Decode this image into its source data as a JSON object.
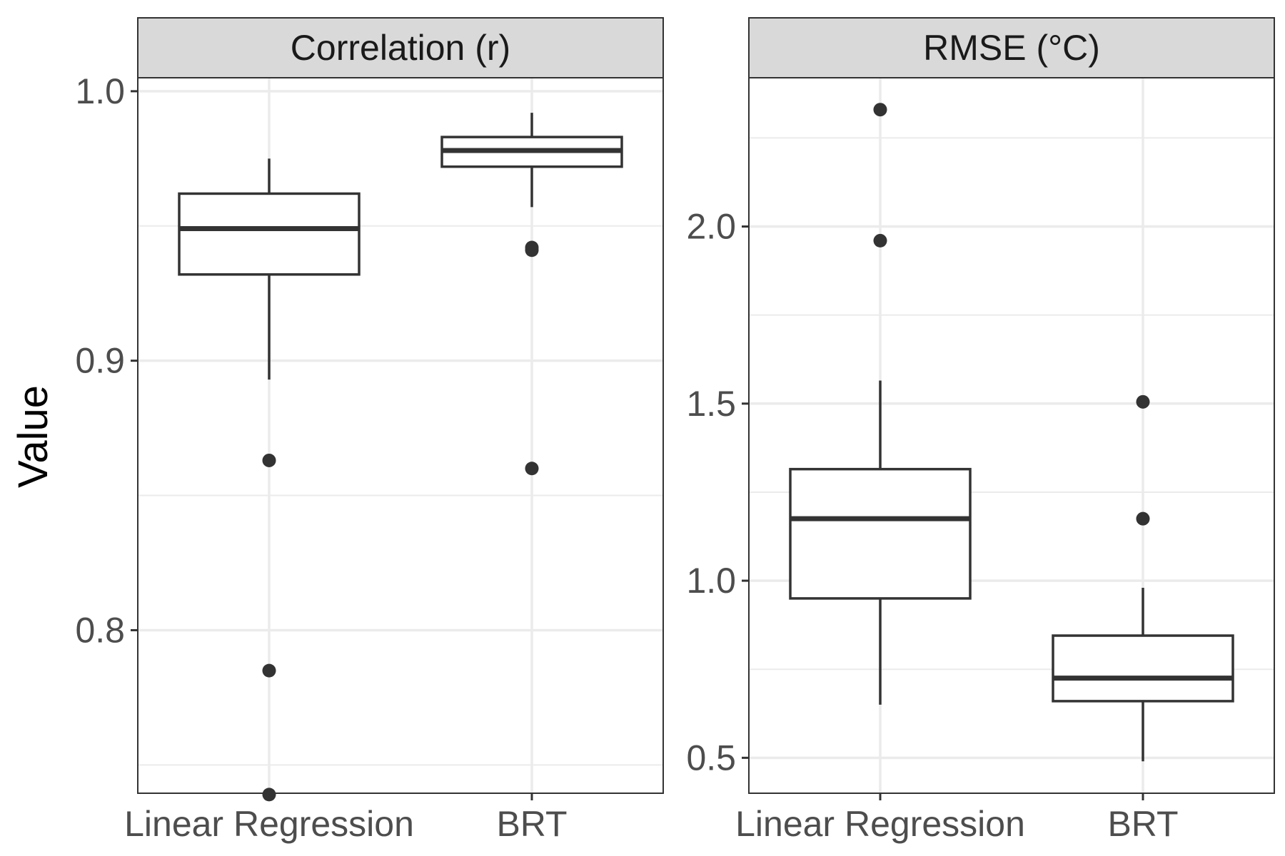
{
  "chart_data": {
    "type": "boxplot",
    "ylabel": "Value",
    "xlabel": "",
    "grid": true,
    "panels": [
      {
        "title": "Correlation (r)",
        "ylim": [
          0.7395,
          1.005
        ],
        "yticks": [
          0.8,
          0.9,
          1.0
        ],
        "ytick_labels": [
          "0.8",
          "0.9",
          "1.0"
        ],
        "categories": [
          "Linear Regression",
          "BRT"
        ],
        "boxes": [
          {
            "category": "Linear Regression",
            "whisker_low": 0.893,
            "q1": 0.932,
            "median": 0.949,
            "q3": 0.962,
            "whisker_high": 0.975,
            "outliers": [
              0.863,
              0.785,
              0.739
            ]
          },
          {
            "category": "BRT",
            "whisker_low": 0.957,
            "q1": 0.972,
            "median": 0.978,
            "q3": 0.983,
            "whisker_high": 0.992,
            "outliers": [
              0.942,
              0.941,
              0.86
            ]
          }
        ]
      },
      {
        "title": "RMSE (°C)",
        "ylim": [
          0.4,
          2.42
        ],
        "yticks": [
          0.5,
          1.0,
          1.5,
          2.0
        ],
        "ytick_labels": [
          "0.5",
          "1.0",
          "1.5",
          "2.0"
        ],
        "categories": [
          "Linear Regression",
          "BRT"
        ],
        "boxes": [
          {
            "category": "Linear Regression",
            "whisker_low": 0.65,
            "q1": 0.95,
            "median": 1.175,
            "q3": 1.315,
            "whisker_high": 1.565,
            "outliers": [
              2.33,
              1.96
            ]
          },
          {
            "category": "BRT",
            "whisker_low": 0.49,
            "q1": 0.66,
            "median": 0.725,
            "q3": 0.845,
            "whisker_high": 0.98,
            "outliers": [
              1.505,
              1.175
            ]
          }
        ]
      }
    ]
  }
}
